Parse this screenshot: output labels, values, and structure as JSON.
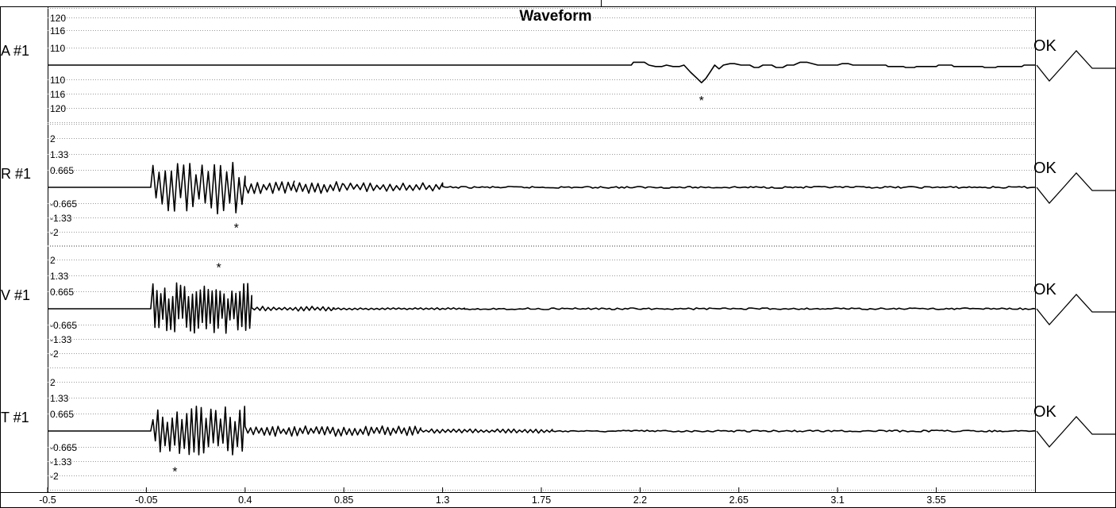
{
  "chart_data": {
    "type": "line",
    "title": "Waveform",
    "x_ticks": [
      "-0.5",
      "-0.05",
      "0.4",
      "0.85",
      "1.3",
      "1.75",
      "2.2",
      "2.65",
      "3.1",
      "3.55"
    ],
    "xlim": [
      -0.5,
      4.0
    ],
    "grid": true,
    "channels": [
      {
        "name": "A #1",
        "tick_labels": [
          "120",
          "116",
          "110",
          "110",
          "116",
          "120"
        ],
        "tick_values": [
          120,
          116,
          110,
          -110,
          -116,
          -120
        ],
        "ylim": [
          -125,
          125
        ],
        "status": "OK",
        "peak_marker": "*",
        "peak": {
          "x": 2.48,
          "y": -116
        },
        "segments": [
          [
            -0.5,
            0
          ],
          [
            2.16,
            0
          ],
          [
            2.17,
            6
          ],
          [
            2.22,
            6
          ],
          [
            2.24,
            0
          ],
          [
            2.27,
            -3
          ],
          [
            2.3,
            -3
          ],
          [
            2.32,
            0
          ],
          [
            2.35,
            -3
          ],
          [
            2.38,
            -3
          ],
          [
            2.4,
            -5
          ],
          [
            2.42,
            -5
          ],
          [
            2.44,
            0
          ],
          [
            2.46,
            3
          ],
          [
            2.49,
            3
          ],
          [
            2.51,
            0
          ],
          [
            2.53,
            -8
          ],
          [
            2.56,
            -8
          ],
          [
            2.58,
            0
          ],
          [
            2.61,
            3
          ],
          [
            2.63,
            3
          ],
          [
            2.66,
            0
          ],
          [
            2.7,
            0
          ],
          [
            2.72,
            -5
          ],
          [
            2.74,
            -5
          ],
          [
            2.76,
            0
          ],
          [
            2.8,
            0
          ],
          [
            2.82,
            -5
          ],
          [
            2.85,
            -5
          ],
          [
            2.87,
            0
          ],
          [
            2.9,
            0
          ],
          [
            2.93,
            6
          ],
          [
            2.96,
            6
          ],
          [
            3.01,
            0
          ],
          [
            3.07,
            0
          ],
          [
            3.1,
            0
          ],
          [
            3.12,
            3
          ],
          [
            3.15,
            3
          ],
          [
            3.17,
            0
          ],
          [
            3.32,
            0
          ],
          [
            3.33,
            -3
          ],
          [
            3.4,
            -3
          ],
          [
            3.41,
            -5
          ],
          [
            3.45,
            -5
          ],
          [
            3.46,
            -3
          ],
          [
            3.55,
            -3
          ],
          [
            3.56,
            0
          ],
          [
            3.62,
            0
          ],
          [
            3.63,
            -3
          ],
          [
            3.76,
            -3
          ],
          [
            3.77,
            -5
          ],
          [
            3.82,
            -5
          ],
          [
            3.83,
            -3
          ],
          [
            3.94,
            -3
          ],
          [
            3.95,
            0
          ],
          [
            4.0,
            0
          ]
        ],
        "dip": [
          [
            2.4,
            0
          ],
          [
            2.43,
            -15
          ],
          [
            2.46,
            -28
          ],
          [
            2.48,
            -37
          ],
          [
            2.5,
            -28
          ],
          [
            2.52,
            -14
          ],
          [
            2.54,
            0
          ]
        ],
        "left_spike": [
          [
            0.11,
            0
          ],
          [
            0.11,
            -3
          ],
          [
            0.11,
            0
          ]
        ]
      },
      {
        "name": "R #1",
        "tick_labels": [
          "2",
          "1.33",
          "0.665",
          "-0.665",
          "-1.33",
          "-2"
        ],
        "tick_values": [
          2,
          1.33,
          0.665,
          -0.665,
          -1.33,
          -2
        ],
        "ylim": [
          -2.3,
          2.3
        ],
        "status": "OK",
        "peak_marker": "*",
        "peak": {
          "x": 0.36,
          "y": -1.33
        },
        "bursts": [
          {
            "x0": -0.02,
            "x1": 0.4,
            "amp": 1.3,
            "period": 0.028
          },
          {
            "x0": 0.4,
            "x1": 0.62,
            "amp": 0.3,
            "period": 0.028
          },
          {
            "x0": 0.62,
            "x1": 0.85,
            "amp": 0.32,
            "period": 0.028
          },
          {
            "x0": 0.85,
            "x1": 1.3,
            "amp": 0.22,
            "period": 0.03
          }
        ]
      },
      {
        "name": "V #1",
        "tick_labels": [
          "2",
          "1.33",
          "0.665",
          "-0.665",
          "-1.33",
          "-2"
        ],
        "tick_values": [
          2,
          1.33,
          0.665,
          -0.665,
          -1.33,
          -2
        ],
        "ylim": [
          -2.3,
          2.3
        ],
        "status": "OK",
        "peak_marker": "*",
        "peak": {
          "x": 0.28,
          "y": 1.33
        },
        "bursts": [
          {
            "x0": -0.02,
            "x1": 0.43,
            "amp": 1.25,
            "period": 0.018
          },
          {
            "x0": 0.43,
            "x1": 0.8,
            "amp": 0.12,
            "period": 0.025
          },
          {
            "x0": 0.8,
            "x1": 1.4,
            "amp": 0.05,
            "period": 0.025
          }
        ]
      },
      {
        "name": "T #1",
        "tick_labels": [
          "2",
          "1.33",
          "0.665",
          "-0.665",
          "-1.33",
          "-2"
        ],
        "tick_values": [
          2,
          1.33,
          0.665,
          -0.665,
          -1.33,
          -2
        ],
        "ylim": [
          -2.3,
          2.3
        ],
        "status": "OK",
        "peak_marker": "*",
        "peak": {
          "x": 0.08,
          "y": -1.33
        },
        "bursts": [
          {
            "x0": -0.02,
            "x1": 0.4,
            "amp": 1.2,
            "period": 0.022
          },
          {
            "x0": 0.4,
            "x1": 1.2,
            "amp": 0.25,
            "period": 0.025
          },
          {
            "x0": 1.2,
            "x1": 1.8,
            "amp": 0.1,
            "period": 0.025
          }
        ]
      }
    ]
  }
}
